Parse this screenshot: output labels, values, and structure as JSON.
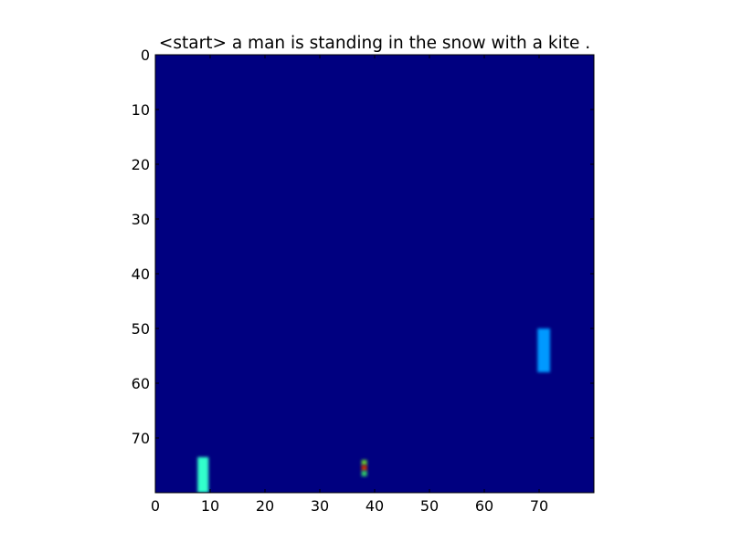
{
  "chart_data": {
    "type": "heatmap",
    "title": "<start> a man is standing in the snow with a kite .",
    "xlabel": "",
    "ylabel": "",
    "grid_size": [
      80,
      80
    ],
    "xlim": [
      0,
      80
    ],
    "ylim": [
      80,
      0
    ],
    "xticks": [
      0,
      10,
      20,
      30,
      40,
      50,
      60,
      70
    ],
    "yticks": [
      0,
      10,
      20,
      30,
      40,
      50,
      60,
      70
    ],
    "colormap": "jet",
    "background_color": "#000080",
    "grid": false,
    "legend": "none",
    "highlights": [
      {
        "x_range": [
          7.7,
          9.7
        ],
        "y_range": [
          73.5,
          80
        ],
        "color": "#33ffcc"
      },
      {
        "x_range": [
          69.7,
          72.0
        ],
        "y_range": [
          50,
          58
        ],
        "color": "#0099ff"
      },
      {
        "x_range": [
          37.6,
          38.6
        ],
        "y_range": [
          74,
          75
        ],
        "color": "#66cc33"
      },
      {
        "x_range": [
          37.6,
          38.6
        ],
        "y_range": [
          75,
          76
        ],
        "color": "#cc3300"
      },
      {
        "x_range": [
          37.6,
          38.6
        ],
        "y_range": [
          76,
          77
        ],
        "color": "#33cc66"
      }
    ]
  }
}
